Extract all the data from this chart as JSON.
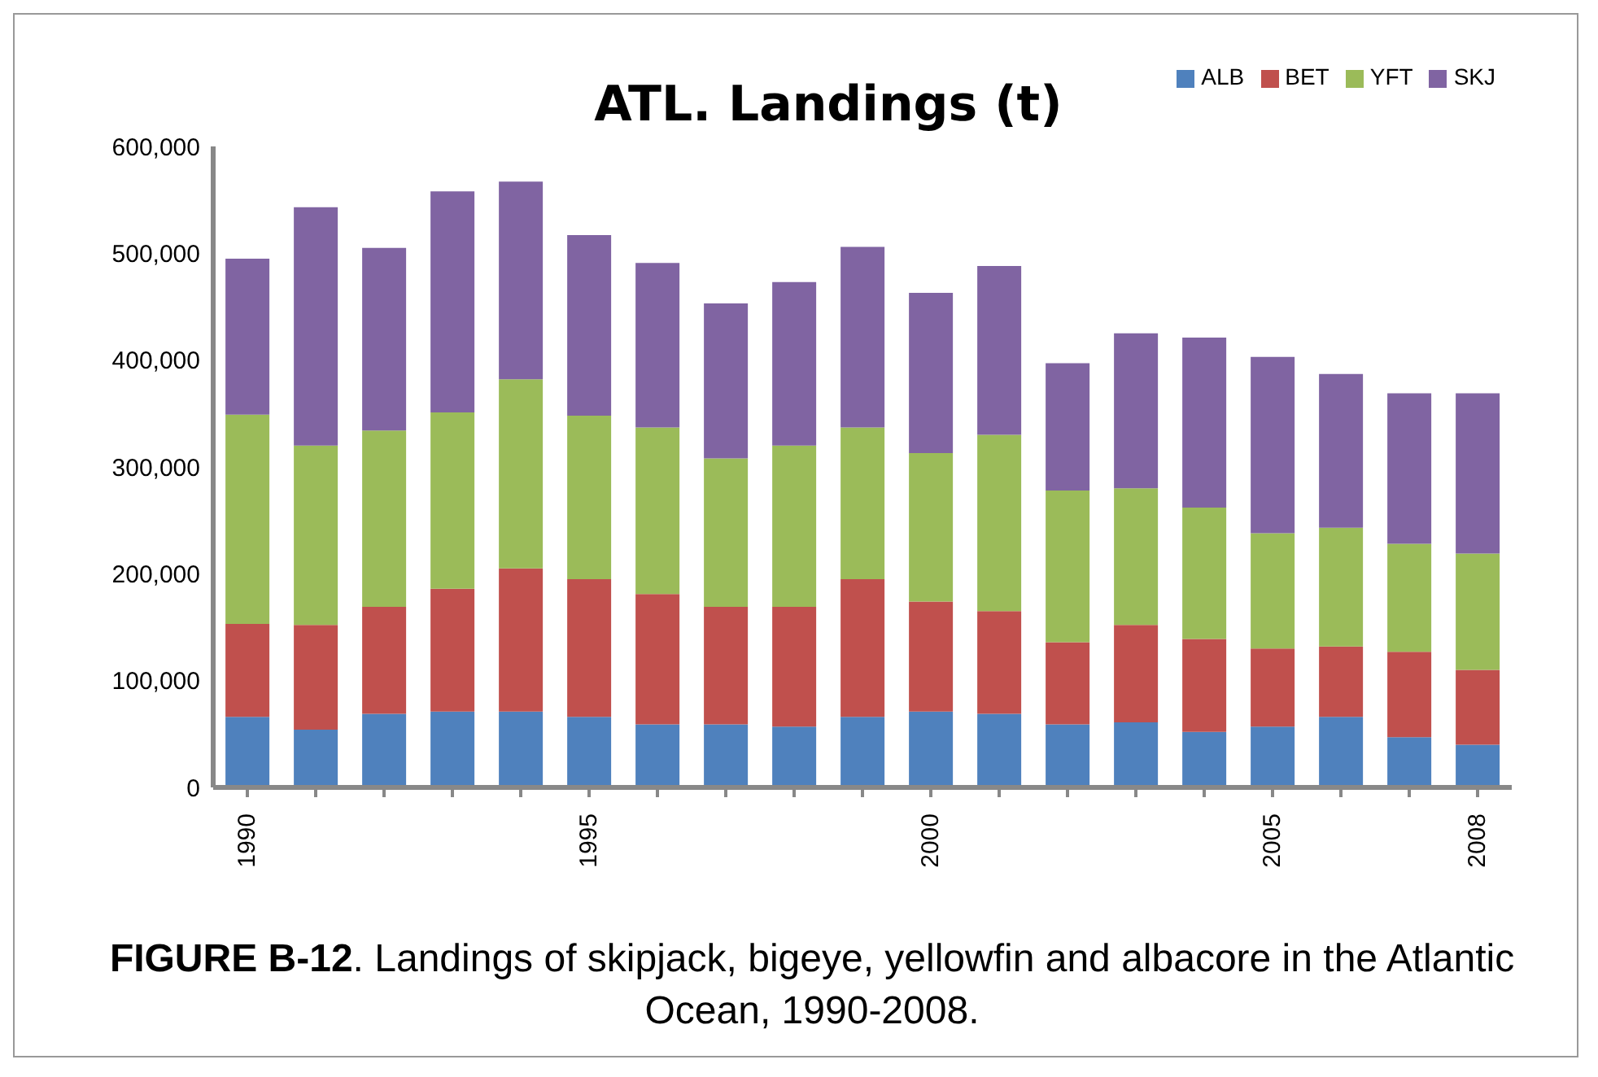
{
  "chart_data": {
    "type": "bar",
    "title": "ATL. Landings (t)",
    "stacked": true,
    "categories": [
      "1990",
      null,
      null,
      null,
      null,
      "1995",
      null,
      null,
      null,
      null,
      "2000",
      null,
      null,
      null,
      null,
      "2005",
      null,
      null,
      "2008"
    ],
    "series": [
      {
        "name": "ALB",
        "color": "#4f81bd",
        "values": [
          66000,
          54000,
          69000,
          71000,
          71000,
          66000,
          59000,
          59000,
          57000,
          66000,
          71000,
          69000,
          59000,
          61000,
          52000,
          57000,
          66000,
          47000,
          40000
        ]
      },
      {
        "name": "BET",
        "color": "#c0504d",
        "values": [
          87000,
          98000,
          100000,
          115000,
          134000,
          129000,
          122000,
          110000,
          112000,
          129000,
          103000,
          96000,
          77000,
          91000,
          87000,
          73000,
          66000,
          80000,
          70000
        ]
      },
      {
        "name": "YFT",
        "color": "#9bbb59",
        "values": [
          196000,
          168000,
          165000,
          165000,
          177000,
          153000,
          156000,
          139000,
          151000,
          142000,
          139000,
          165000,
          142000,
          128000,
          123000,
          108000,
          111000,
          101000,
          109000
        ]
      },
      {
        "name": "SKJ",
        "color": "#8064a2",
        "values": [
          146000,
          223000,
          171000,
          207000,
          185000,
          169000,
          154000,
          145000,
          153000,
          169000,
          150000,
          158000,
          119000,
          145000,
          159000,
          165000,
          144000,
          141000,
          150000
        ]
      }
    ],
    "ylim": [
      0,
      600000
    ],
    "yticks": [
      0,
      {
        "value": 100000,
        "label": "100,000"
      },
      {
        "value": 200000,
        "label": "200,000"
      },
      {
        "value": 300000,
        "label": "300,000"
      },
      {
        "value": 400000,
        "label": "400,000"
      },
      {
        "value": 500000,
        "label": "500,000"
      },
      {
        "value": 600000,
        "label": "600,000"
      }
    ],
    "grid": false,
    "legend": "top right",
    "annotations": [
      "FIGURE B-12. Landings of skipjack, bigeye, yellowfin and albacore in the Atlantic Ocean, 1990-2008."
    ]
  }
}
